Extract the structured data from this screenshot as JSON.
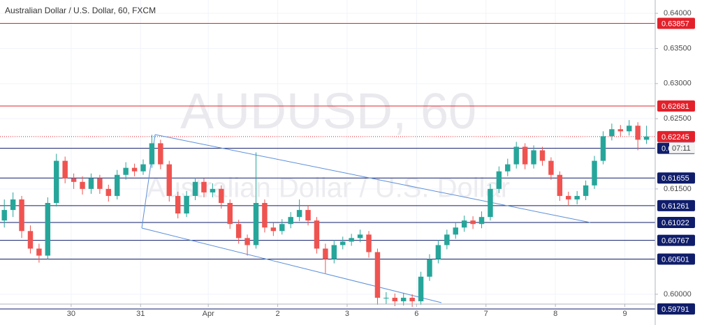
{
  "chart_data": {
    "type": "candlestick",
    "title": "Australian Dollar / U.S. Dollar, 60, FXCM",
    "watermark": "AUDUSD, 60",
    "watermark_subtitle": "Australian Dollar / U.S. Dollar",
    "countdown": "07:11",
    "up_color": "#26a69a",
    "down_color": "#ef5350",
    "grid": true,
    "open": [
      0.6105,
      0.612,
      0.6135,
      0.609,
      0.6065,
      0.6055,
      0.613,
      0.619,
      0.6165,
      0.616,
      0.615,
      0.6165,
      0.615,
      0.614,
      0.617,
      0.618,
      0.6175,
      0.6185,
      0.6215,
      0.6185,
      0.614,
      0.6115,
      0.614,
      0.616,
      0.6145,
      0.615,
      0.613,
      0.61,
      0.608,
      0.607,
      0.613,
      0.6095,
      0.609,
      0.61,
      0.611,
      0.612,
      0.6105,
      0.6065,
      0.605,
      0.607,
      0.6075,
      0.608,
      0.6085,
      0.606,
      0.5995,
      0.5995,
      0.599,
      0.5995,
      0.599,
      0.6025,
      0.605,
      0.607,
      0.6085,
      0.6095,
      0.6105,
      0.61,
      0.611,
      0.615,
      0.6175,
      0.6185,
      0.621,
      0.6185,
      0.6205,
      0.619,
      0.617,
      0.614,
      0.6135,
      0.614,
      0.6155,
      0.619,
      0.6225,
      0.6235,
      0.6232,
      0.624,
      0.622
    ],
    "high": [
      0.6135,
      0.6145,
      0.614,
      0.6098,
      0.6072,
      0.6138,
      0.62,
      0.6196,
      0.6172,
      0.6168,
      0.6172,
      0.617,
      0.6156,
      0.6177,
      0.6188,
      0.6186,
      0.6192,
      0.6227,
      0.622,
      0.619,
      0.6146,
      0.6147,
      0.6166,
      0.6165,
      0.6158,
      0.6155,
      0.6135,
      0.6106,
      0.6085,
      0.6202,
      0.6135,
      0.6102,
      0.6107,
      0.6117,
      0.6135,
      0.6127,
      0.611,
      0.6072,
      0.6077,
      0.6082,
      0.6086,
      0.6092,
      0.609,
      0.6065,
      0.6003,
      0.6001,
      0.6002,
      0.6,
      0.6032,
      0.6057,
      0.6077,
      0.6092,
      0.6103,
      0.6112,
      0.6111,
      0.6118,
      0.6157,
      0.6182,
      0.6193,
      0.6217,
      0.6215,
      0.6212,
      0.621,
      0.6195,
      0.6175,
      0.6146,
      0.6147,
      0.6162,
      0.6197,
      0.6232,
      0.6243,
      0.6241,
      0.6248,
      0.6245,
      0.624
    ],
    "low": [
      0.6095,
      0.611,
      0.608,
      0.6058,
      0.6045,
      0.605,
      0.6125,
      0.6158,
      0.615,
      0.6142,
      0.6143,
      0.6143,
      0.6132,
      0.6135,
      0.6163,
      0.6168,
      0.617,
      0.618,
      0.6178,
      0.6132,
      0.6108,
      0.611,
      0.6134,
      0.6138,
      0.6138,
      0.6122,
      0.6093,
      0.6072,
      0.6055,
      0.6065,
      0.6088,
      0.6083,
      0.6085,
      0.6094,
      0.6104,
      0.6098,
      0.6058,
      0.603,
      0.6044,
      0.6064,
      0.6069,
      0.6074,
      0.6052,
      0.5985,
      0.5986,
      0.5983,
      0.5984,
      0.5982,
      0.5985,
      0.6019,
      0.6044,
      0.6064,
      0.6079,
      0.6089,
      0.6093,
      0.6094,
      0.6105,
      0.6144,
      0.6168,
      0.6179,
      0.6178,
      0.6179,
      0.6183,
      0.6163,
      0.6133,
      0.6126,
      0.6128,
      0.6134,
      0.615,
      0.6185,
      0.6219,
      0.6225,
      0.6226,
      0.6205,
      0.6214
    ],
    "close": [
      0.612,
      0.6135,
      0.609,
      0.6065,
      0.6055,
      0.613,
      0.619,
      0.6165,
      0.616,
      0.615,
      0.6165,
      0.615,
      0.614,
      0.617,
      0.618,
      0.6175,
      0.6185,
      0.6215,
      0.6185,
      0.614,
      0.6115,
      0.614,
      0.616,
      0.6145,
      0.615,
      0.613,
      0.61,
      0.608,
      0.607,
      0.613,
      0.6095,
      0.609,
      0.61,
      0.611,
      0.612,
      0.6105,
      0.6065,
      0.605,
      0.607,
      0.6075,
      0.608,
      0.6085,
      0.606,
      0.5995,
      0.5995,
      0.599,
      0.5995,
      0.599,
      0.6025,
      0.605,
      0.607,
      0.6085,
      0.6095,
      0.6105,
      0.61,
      0.611,
      0.615,
      0.6175,
      0.6185,
      0.621,
      0.6185,
      0.6205,
      0.619,
      0.617,
      0.614,
      0.6135,
      0.614,
      0.6155,
      0.619,
      0.6225,
      0.6235,
      0.6232,
      0.624,
      0.622,
      0.62245
    ],
    "levels": [
      0.63857,
      0.62681,
      0.62079,
      0.61655,
      0.61261,
      0.61022,
      0.60767,
      0.60501,
      0.59791
    ],
    "level_colors": [
      "#e3212b",
      "#e3212b",
      "#0f1d6b",
      "#0f1d6b",
      "#0f1d6b",
      "#0f1d6b",
      "#0f1d6b",
      "#0f1d6b",
      "#0f1d6b"
    ],
    "last_price_color": "#e3212b",
    "ylim": [
      0.5986,
      0.6419
    ],
    "yticks": [
      {
        "value": 0.64,
        "label": "0.64000"
      },
      {
        "value": 0.635,
        "label": "0.63500"
      },
      {
        "value": 0.63,
        "label": "0.63000"
      },
      {
        "value": 0.625,
        "label": "0.62500"
      },
      {
        "value": 0.615,
        "label": "0.61500"
      },
      {
        "value": 0.6,
        "label": "0.60000"
      }
    ],
    "xlim": [
      0,
      75.5
    ],
    "xticks": [
      {
        "value": 8.2,
        "label": "30"
      },
      {
        "value": 16.2,
        "label": "31"
      },
      {
        "value": 24,
        "label": "Apr"
      },
      {
        "value": 32,
        "label": "2"
      },
      {
        "value": 40,
        "label": "3"
      },
      {
        "value": 48,
        "label": "6"
      },
      {
        "value": 56,
        "label": "7"
      },
      {
        "value": 64,
        "label": "8"
      },
      {
        "value": 72,
        "label": "9"
      }
    ]
  }
}
